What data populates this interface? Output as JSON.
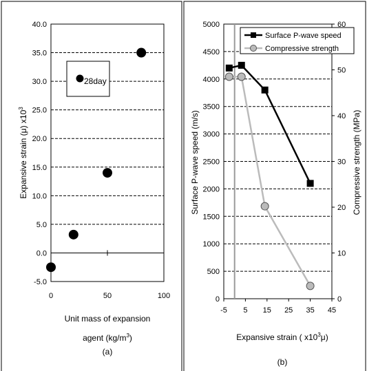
{
  "chart_data": [
    {
      "type": "scatter",
      "panel_label": "(a)",
      "xlabel_line1": "Unit mass of expansion",
      "xlabel_line2": "agent (kg/m",
      "xlabel_sup": "3",
      "xlabel_close": ")",
      "ylabel": "Expansive strain (μ) x10",
      "ylabel_sup": "3",
      "annotation": "28day",
      "xlim": [
        0,
        100
      ],
      "ylim": [
        -5,
        40
      ],
      "x_ticks": [
        "0",
        "50",
        "100"
      ],
      "y_ticks": [
        "-5.0",
        "0.0",
        "5.0",
        "10.0",
        "15.0",
        "20.0",
        "25.0",
        "30.0",
        "35.0",
        "40.0"
      ],
      "grid": true,
      "points": [
        {
          "x": 0,
          "y": -2.5
        },
        {
          "x": 20,
          "y": 3.2
        },
        {
          "x": 50,
          "y": 14.0
        },
        {
          "x": 80,
          "y": 35.0
        }
      ],
      "marker_color": "#000000"
    },
    {
      "type": "line",
      "panel_label": "(b)",
      "xlabel": "Expansive strain ( x10",
      "xlabel_sup": "3",
      "xlabel_unit": "μ)",
      "ylabel_left": "Surface P-wave speed (m/s)",
      "ylabel_right": "Compressive strength (MPa)",
      "xlim": [
        -5,
        45
      ],
      "ylim_left": [
        0,
        5000
      ],
      "ylim_right": [
        0,
        60
      ],
      "x_ticks": [
        "-5",
        "5",
        "15",
        "25",
        "35",
        "45"
      ],
      "y_ticks_left": [
        "0",
        "500",
        "1000",
        "1500",
        "2000",
        "2500",
        "3000",
        "3500",
        "4000",
        "4500",
        "5000"
      ],
      "y_ticks_right": [
        "0",
        "10",
        "20",
        "30",
        "40",
        "50",
        "60"
      ],
      "grid": true,
      "legend_position": "top-right",
      "vertical_reference_x": 0,
      "series": [
        {
          "name": "Surface P-wave speed",
          "axis": "left",
          "marker": "square",
          "color": "#000000",
          "x": [
            -2.5,
            3.2,
            14.0,
            35.0
          ],
          "y": [
            4200,
            4250,
            3800,
            2100
          ]
        },
        {
          "name": "Compressive strength",
          "axis": "right",
          "marker": "circle",
          "color": "#bbbbbb",
          "x": [
            -2.5,
            3.2,
            14.0,
            35.0
          ],
          "y": [
            48.5,
            48.5,
            20.2,
            2.8
          ]
        }
      ]
    }
  ]
}
